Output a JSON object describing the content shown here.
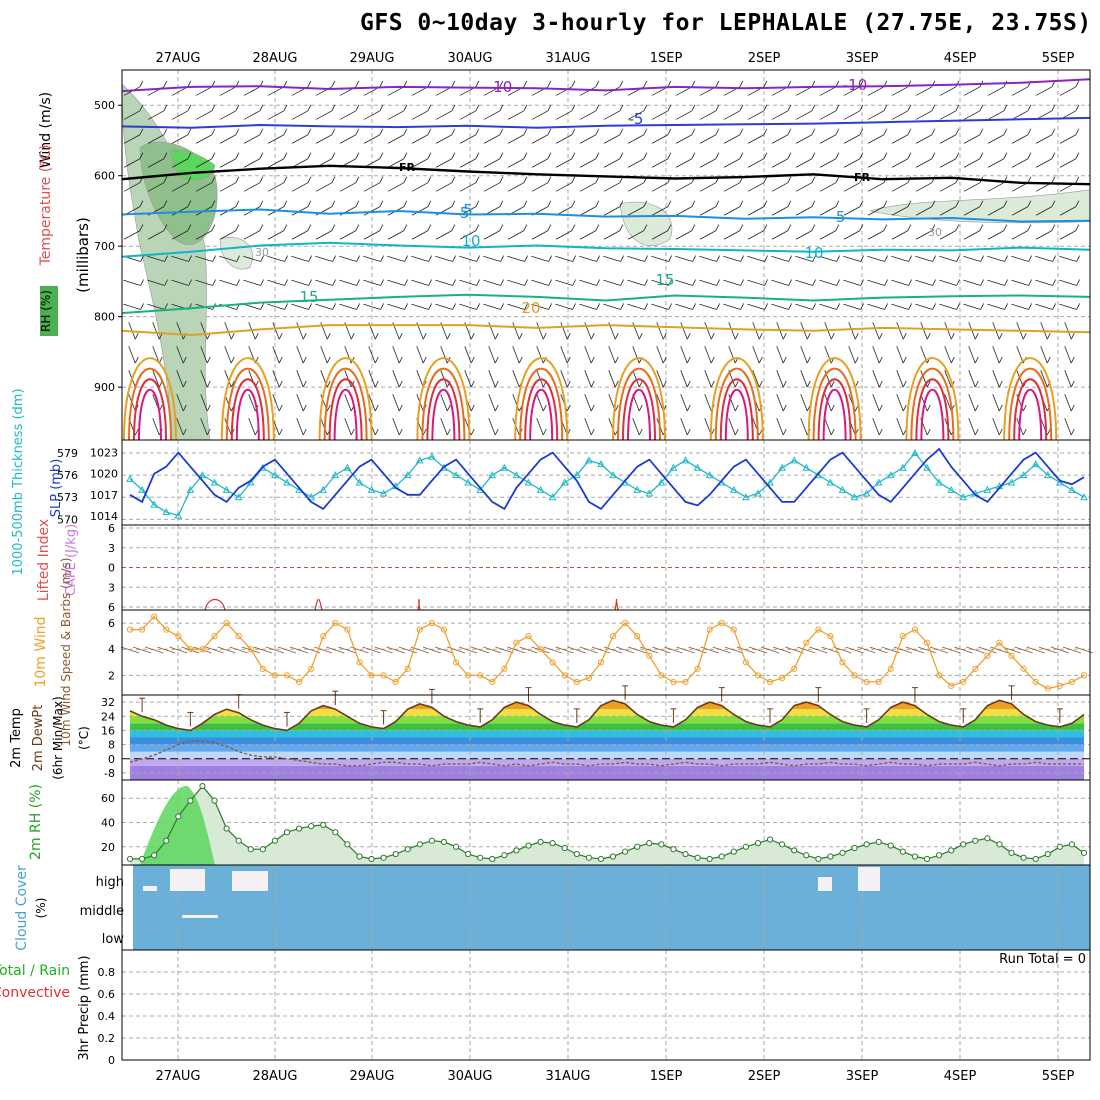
{
  "title": "GFS 0~10day 3-hourly for LEPHALALE (27.75E, 23.75S)",
  "chart_data": {
    "type": "meteogram",
    "date_labels": [
      "27AUG",
      "28AUG",
      "29AUG",
      "30AUG",
      "31AUG",
      "1SEP",
      "2SEP",
      "3SEP",
      "4SEP",
      "5SEP"
    ],
    "panels": {
      "upper_air": {
        "ylabel_parts": [
          "RH (%)",
          "Temperature (°C)",
          "Wind (m/s)"
        ],
        "y_unit_label": "(millibars)",
        "y_ticks": [
          500,
          600,
          700,
          800,
          900
        ],
        "ylim": [
          450,
          975
        ],
        "isotherm_labels": [
          "-10",
          "-10",
          "-5",
          "-5",
          "FR",
          "FR",
          "-5",
          "5",
          "10",
          "10",
          "15",
          "15",
          "20",
          "30",
          "30"
        ],
        "isotherms": [
          {
            "temp": -10,
            "color": "#8e24c0",
            "levels": [
              480,
              474,
              473,
              477,
              474,
              475,
              476,
              479,
              474,
              476,
              474,
              473,
              471,
              468,
              463
            ]
          },
          {
            "temp": -5,
            "color": "#2a3fd1",
            "levels": [
              530,
              532,
              528,
              530,
              531,
              529,
              532,
              529,
              528,
              527,
              526,
              524,
              522,
              520,
              518
            ]
          },
          {
            "temp": 0,
            "color": "#000000",
            "levels": [
              605,
              596,
              590,
              586,
              589,
              594,
              598,
              601,
              604,
              602,
              598,
              605,
              603,
              610,
              612
            ]
          },
          {
            "temp": 5,
            "color": "#1e8fe0",
            "levels": [
              655,
              651,
              648,
              654,
              650,
              655,
              654,
              658,
              657,
              661,
              659,
              662,
              660,
              665,
              664
            ]
          },
          {
            "temp": 10,
            "color": "#10b4c8",
            "levels": [
              715,
              708,
              699,
              695,
              699,
              702,
              699,
              703,
              704,
              706,
              708,
              705,
              706,
              702,
              705
            ]
          },
          {
            "temp": 15,
            "color": "#18b27a",
            "levels": [
              795,
              788,
              780,
              776,
              772,
              769,
              772,
              777,
              770,
              773,
              777,
              773,
              771,
              770,
              772
            ]
          },
          {
            "temp": 20,
            "color": "#e0a020",
            "levels": [
              820,
              826,
              818,
              812,
              812,
              812,
              816,
              812,
              815,
              818,
              820,
              816,
              818,
              820,
              822
            ]
          }
        ]
      },
      "thickness_slp": {
        "ylabel_thickness": "1000-500mb Thickness (dm)",
        "ylabel_slp": "SLP (mb)",
        "thickness_ticks": [
          570,
          573,
          576,
          579
        ],
        "slp_ticks": [
          1014,
          1017,
          1020,
          1023
        ],
        "thickness": [
          575.5,
          574,
          572,
          571,
          570.5,
          574,
          576,
          575,
          574,
          573,
          575,
          577,
          576,
          575,
          574,
          573,
          574,
          576,
          577,
          575,
          574,
          573.5,
          574.5,
          576,
          578,
          578.5,
          577,
          576,
          575,
          574,
          576,
          577,
          576,
          575,
          574,
          573,
          575,
          576,
          578,
          577.5,
          576,
          575,
          574,
          573.5,
          575,
          577,
          578,
          577,
          576,
          575,
          574,
          573,
          573.5,
          575,
          577,
          578,
          577,
          576,
          575,
          574,
          573,
          573.5,
          575,
          576,
          577,
          579,
          577,
          575,
          574,
          573,
          573.5,
          574,
          574.5,
          575,
          576,
          577.5,
          576,
          575,
          574,
          573
        ],
        "slp": [
          1017,
          1016,
          1020,
          1021,
          1023,
          1021,
          1019,
          1017,
          1016,
          1018,
          1019,
          1021,
          1022,
          1020,
          1018,
          1016,
          1015,
          1017,
          1019,
          1021,
          1022,
          1020,
          1018,
          1017,
          1017,
          1019,
          1021,
          1022,
          1020,
          1018,
          1016,
          1015,
          1018,
          1020,
          1022,
          1023,
          1021,
          1019,
          1016,
          1015,
          1017,
          1019,
          1021,
          1022,
          1020,
          1018,
          1016,
          1015.5,
          1017,
          1019,
          1021,
          1022,
          1020,
          1018,
          1016,
          1016,
          1018,
          1020,
          1022,
          1023,
          1021,
          1019,
          1017,
          1016,
          1018,
          1020,
          1022,
          1023.5,
          1021,
          1019,
          1017,
          1016,
          1018,
          1020,
          1022,
          1023,
          1021,
          1019,
          1018.5,
          1019.5
        ]
      },
      "instability": {
        "ylabel_li": "Lifted Index",
        "ylabel_cape": "CAPE (J/kg)",
        "y_ticks": [
          6,
          3,
          0,
          -3,
          -6
        ]
      },
      "wind10m": {
        "ylabel": "10m Wind Speed & Barbs (m/s)",
        "y_ticks": [
          2,
          4,
          6
        ],
        "speed": [
          5.5,
          5.5,
          6.5,
          5.5,
          5,
          4,
          4,
          5,
          6,
          5,
          4,
          2.5,
          2,
          2,
          1.5,
          2.5,
          5,
          6,
          5.5,
          3,
          2,
          2,
          1.5,
          2.5,
          5.5,
          6,
          5.5,
          3,
          2,
          2,
          1.5,
          2.5,
          4.5,
          5,
          4,
          3,
          2,
          1.5,
          1.8,
          3,
          5,
          6,
          5,
          3.5,
          2,
          1.5,
          1.5,
          2.5,
          5.5,
          6,
          5.5,
          3,
          2,
          1.5,
          1.8,
          2.5,
          4.5,
          5.5,
          5,
          3,
          2,
          1.5,
          1.5,
          2.5,
          5,
          5.5,
          4.5,
          2,
          1.2,
          1.5,
          2.5,
          3.5,
          4.5,
          3.5,
          2.5,
          1.5,
          1,
          1.2,
          1.5,
          2
        ]
      },
      "temperature2m": {
        "ylabel": "2m Temp 2m DewPt (6hr Min/Max) (°C)",
        "y_ticks": [
          -8,
          0,
          8,
          16,
          24,
          32
        ],
        "temp": [
          27,
          24,
          22,
          19,
          17,
          16,
          20,
          25,
          28,
          26,
          22,
          19,
          17,
          16,
          20,
          27,
          30,
          28,
          24,
          20,
          18,
          17,
          21,
          28,
          31,
          29,
          24,
          21,
          19,
          18,
          22,
          29,
          32,
          30,
          25,
          21,
          19,
          18,
          22,
          30,
          33,
          31,
          25,
          21,
          19,
          18,
          22,
          29,
          32,
          30,
          25,
          21,
          19,
          18,
          22,
          30,
          32,
          30,
          25,
          21,
          19,
          18,
          22,
          29,
          32,
          30,
          25,
          21,
          19,
          18,
          22,
          30,
          33,
          31,
          25,
          21,
          19,
          18,
          20,
          25
        ],
        "dewpoint": [
          -2,
          0,
          2,
          5,
          8,
          10,
          10,
          9,
          7,
          4,
          2,
          1,
          1,
          0,
          -1,
          -2,
          -3,
          -3,
          -4,
          -4,
          -3,
          -2,
          -2,
          -3,
          -3,
          -4,
          -3,
          -3,
          -3,
          -2,
          -3,
          -4,
          -3,
          -4,
          -3,
          -2,
          -3,
          -3,
          -4,
          -3,
          -3,
          -2,
          -3,
          -3,
          -4,
          -3,
          -2,
          -3,
          -3,
          -4,
          -3,
          -3,
          -3,
          -2,
          -3,
          -4,
          -3,
          -3,
          -2,
          -3,
          -3,
          -4,
          -3,
          -2,
          -3,
          -3,
          -4,
          -3,
          -3,
          -3,
          -2,
          -3,
          -4,
          -3,
          -3,
          -2,
          -3,
          -3,
          -3,
          -3
        ]
      },
      "rh2m": {
        "ylabel": "2m RH (%)",
        "y_ticks": [
          20,
          40,
          60
        ],
        "rh": [
          10,
          10,
          13,
          25,
          45,
          58,
          70,
          58,
          35,
          25,
          18,
          18,
          25,
          32,
          35,
          37,
          38,
          32,
          22,
          12,
          10,
          11,
          14,
          18,
          22,
          25,
          24,
          20,
          14,
          11,
          10,
          13,
          17,
          21,
          24,
          23,
          19,
          14,
          11,
          10,
          12,
          16,
          20,
          23,
          22,
          18,
          14,
          11,
          10,
          12,
          16,
          20,
          23,
          26,
          22,
          17,
          13,
          10,
          12,
          15,
          19,
          22,
          24,
          21,
          16,
          12,
          10,
          13,
          17,
          22,
          25,
          27,
          22,
          15,
          11,
          10,
          14,
          20,
          22,
          15
        ]
      },
      "cloud_cover": {
        "ylabel": "Cloud Cover (%)",
        "levels": [
          "high",
          "middle",
          "low"
        ]
      },
      "precipitation": {
        "ylabel_parts": [
          "Total / Rain",
          "Convective"
        ],
        "ylabel_axis": "3hr Precip (mm)",
        "y_ticks": [
          "0",
          "0.2",
          "0.4",
          "0.6",
          "0.8"
        ],
        "run_total_label": "Run Total = 0",
        "values": []
      }
    }
  }
}
